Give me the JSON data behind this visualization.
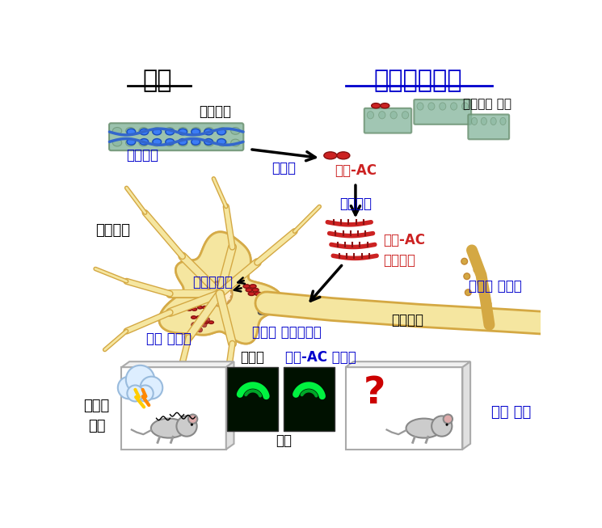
{
  "title_normal": "정상",
  "title_alzheimer": "알츠하이머병",
  "label_microtubule": "미세소관",
  "label_full_tau": "전장타우",
  "label_split": "쪼개짐",
  "label_tau_ac": "타우-AC",
  "label_self_assembly": "자가응집",
  "label_microtubule_deg": "미세소관 분해",
  "label_neuron": "신경세포",
  "label_endocytosis": "세포내이입",
  "label_tau_ac_oligomer": "타우-AC\n올리고머",
  "label_tau_aggregate": "타우 응집체",
  "label_axon_start": "손상된 축삭기시부",
  "label_axon": "축삭돌기",
  "label_degeneration": "퇴행성 뇌질환",
  "label_fear_memory": "두려움\n기억",
  "label_control": "대조군",
  "label_tau_injection": "타우-AC 주입군",
  "label_hippocampus": "해마",
  "label_memory_loss": "기억 소실",
  "label_question": "?",
  "bg_color": "#ffffff",
  "neuron_color": "#f5e6a0",
  "neuron_outline": "#d4a843",
  "axon_start_color": "#aaaaaa",
  "microtubule_body_color": "#8ab8a0",
  "microtubule_line_color": "#3366cc",
  "tau_ac_color": "#cc2222",
  "blue_label_color": "#0000cc",
  "red_label_color": "#cc0000",
  "black_color": "#000000",
  "degeneration_color": "#d4a843"
}
